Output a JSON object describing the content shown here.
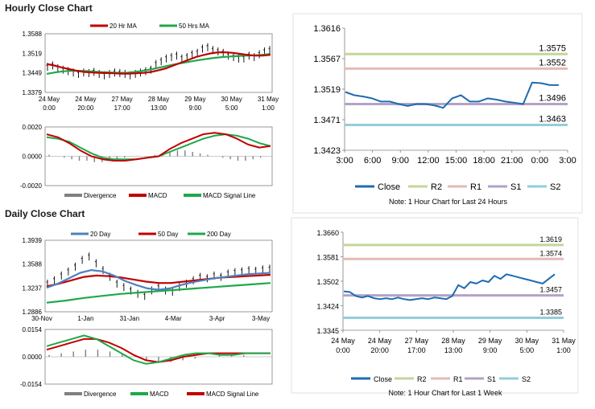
{
  "sections": {
    "hourly_title": "Hourly Close Chart",
    "daily_title": "Daily Close Chart"
  },
  "chart_data": [
    {
      "id": "hourly-price",
      "type": "line",
      "legend": [
        "20 Hr MA",
        "50 Hrs MA"
      ],
      "ytick_labels": [
        "1.3588",
        "1.3519",
        "1.3449",
        "1.3379"
      ],
      "ylim": [
        1.3379,
        1.3588
      ],
      "xtick_labels": [
        [
          "24 May",
          "0:00"
        ],
        [
          "24 May",
          "20:00"
        ],
        [
          "27 May",
          "17:00"
        ],
        [
          "28 May",
          "13:00"
        ],
        [
          "29 May",
          "9:00"
        ],
        [
          "30 May",
          "5:00"
        ],
        [
          "31 May",
          "1:00"
        ]
      ],
      "series": [
        {
          "name": "Close (bars)",
          "color": "#000000",
          "values": [
            1.347,
            1.3475,
            1.3465,
            1.346,
            1.3455,
            1.345,
            1.3445,
            1.345,
            1.3448,
            1.3452,
            1.3445,
            1.344,
            1.3445,
            1.345,
            1.3448,
            1.3445,
            1.344,
            1.3445,
            1.345,
            1.3455,
            1.346,
            1.348,
            1.349,
            1.35,
            1.3505,
            1.351,
            1.35,
            1.3505,
            1.3515,
            1.352,
            1.3535,
            1.354,
            1.353,
            1.3525,
            1.352,
            1.351,
            1.3505,
            1.35,
            1.35,
            1.351,
            1.3505,
            1.3515,
            1.3525,
            1.353
          ]
        },
        {
          "name": "20 Hr MA",
          "color": "#c00000",
          "values": [
            1.348,
            1.3475,
            1.3468,
            1.3462,
            1.3456,
            1.3452,
            1.345,
            1.3449,
            1.3448,
            1.3447,
            1.3446,
            1.3446,
            1.3447,
            1.3449,
            1.3452,
            1.3458,
            1.3465,
            1.3475,
            1.3485,
            1.3495,
            1.3505,
            1.3512,
            1.3518,
            1.3522,
            1.3522,
            1.352,
            1.3516,
            1.3512,
            1.351,
            1.351,
            1.3513
          ]
        },
        {
          "name": "50 Hrs MA",
          "color": "#1fa84a",
          "values": [
            1.3445,
            1.345,
            1.3454,
            1.3456,
            1.3456,
            1.3455,
            1.3453,
            1.3451,
            1.345,
            1.3449,
            1.3449,
            1.3452,
            1.3456,
            1.3461,
            1.3467,
            1.3473,
            1.3479,
            1.3484,
            1.3489,
            1.3494,
            1.3498,
            1.3502,
            1.3505,
            1.3507,
            1.3509,
            1.351,
            1.3511,
            1.3513,
            1.3516
          ]
        }
      ]
    },
    {
      "id": "hourly-macd",
      "type": "line",
      "legend": [
        "Divergence",
        "MACD",
        "MACD Signal Line"
      ],
      "ytick_labels": [
        "0.0020",
        "0.0000",
        "-0.0020"
      ],
      "ylim": [
        -0.002,
        0.002
      ],
      "series": [
        {
          "name": "Divergence",
          "color": "#808080",
          "values": [
            0.0001,
            0.0,
            -0.0001,
            -0.0002,
            -0.0003,
            -0.0003,
            -0.0004,
            -0.0004,
            -0.0003,
            -0.0002,
            -0.0001,
            0.0,
            0.0,
            0.0,
            0.0001,
            0.0002,
            0.0003,
            0.0004,
            0.0004,
            0.0003,
            0.0002,
            0.0001,
            0.0,
            -0.0001,
            -0.0002,
            -0.0003,
            -0.0003,
            -0.0002,
            -0.0001,
            0.0
          ]
        },
        {
          "name": "MACD",
          "color": "#c00000",
          "values": [
            0.0015,
            0.0013,
            0.0009,
            0.0004,
            0.0,
            -0.0002,
            -0.0003,
            -0.0003,
            -0.0002,
            -0.0001,
            0.0,
            0.0005,
            0.0009,
            0.0012,
            0.0015,
            0.0016,
            0.0015,
            0.0012,
            0.0008,
            0.0006,
            0.0007
          ]
        },
        {
          "name": "MACD Signal Line",
          "color": "#1fa84a",
          "values": [
            0.0013,
            0.0012,
            0.001,
            0.0006,
            0.0002,
            -0.0001,
            -0.0002,
            -0.0002,
            -0.0002,
            -0.0001,
            0.0,
            0.0003,
            0.0006,
            0.0009,
            0.0012,
            0.0014,
            0.0015,
            0.0014,
            0.0012,
            0.0009,
            0.0007
          ]
        }
      ]
    },
    {
      "id": "hourly-levels",
      "type": "line",
      "ytick_labels": [
        "1.3616",
        "1.3567",
        "1.3519",
        "1.3471",
        "1.3423"
      ],
      "ylim": [
        1.3423,
        1.3616
      ],
      "xtick_labels": [
        "3:00",
        "6:00",
        "9:00",
        "12:00",
        "15:00",
        "18:00",
        "21:00",
        "0:00",
        "3:00"
      ],
      "levels": [
        {
          "name": "R2",
          "value": 1.3575,
          "label": "1.3575",
          "color": "#c3d69b"
        },
        {
          "name": "R1",
          "value": 1.3552,
          "label": "1.3552",
          "color": "#e6b9b8"
        },
        {
          "name": "S1",
          "value": 1.3496,
          "label": "1.3496",
          "color": "#b3a2c7"
        },
        {
          "name": "S2",
          "value": 1.3463,
          "label": "1.3463",
          "color": "#93cddd"
        }
      ],
      "series": [
        {
          "name": "Close",
          "color": "#1f6bb0",
          "values": [
            1.3515,
            1.351,
            1.3508,
            1.3505,
            1.35,
            1.35,
            1.3496,
            1.3493,
            1.3496,
            1.3496,
            1.3494,
            1.349,
            1.3505,
            1.351,
            1.35,
            1.35,
            1.3505,
            1.3503,
            1.35,
            1.3498,
            1.3496,
            1.353,
            1.3529,
            1.3526,
            1.3526
          ]
        }
      ],
      "legend": [
        "Close",
        "R2",
        "R1",
        "S1",
        "S2"
      ],
      "note": "Note: 1 Hour Chart for Last 24 Hours"
    },
    {
      "id": "daily-price",
      "type": "line",
      "legend": [
        "20 Day",
        "50 Day",
        "200 Day"
      ],
      "ytick_labels": [
        "1.3939",
        "1.3588",
        "1.3237",
        "1.2886"
      ],
      "ylim": [
        1.2886,
        1.3939
      ],
      "xtick_labels": [
        "30-Nov",
        "1-Jan",
        "31-Jan",
        "4-Mar",
        "3-Apr",
        "3-May"
      ],
      "series": [
        {
          "name": "Close (bars)",
          "color": "#000000",
          "values": [
            1.33,
            1.335,
            1.342,
            1.348,
            1.355,
            1.365,
            1.37,
            1.36,
            1.35,
            1.34,
            1.33,
            1.325,
            1.32,
            1.315,
            1.312,
            1.32,
            1.325,
            1.32,
            1.318,
            1.325,
            1.33,
            1.335,
            1.34,
            1.338,
            1.342,
            1.34,
            1.345,
            1.347,
            1.348,
            1.35,
            1.349,
            1.351,
            1.352
          ]
        },
        {
          "name": "20 Day",
          "color": "#4f81bd",
          "values": [
            1.324,
            1.33,
            1.338,
            1.346,
            1.35,
            1.348,
            1.342,
            1.334,
            1.328,
            1.323,
            1.321,
            1.323,
            1.328,
            1.332,
            1.335,
            1.338,
            1.34,
            1.342,
            1.344,
            1.345,
            1.346
          ]
        },
        {
          "name": "50 Day",
          "color": "#c00000",
          "values": [
            1.326,
            1.33,
            1.335,
            1.34,
            1.342,
            1.341,
            1.339,
            1.336,
            1.333,
            1.331,
            1.331,
            1.333,
            1.335,
            1.337,
            1.339,
            1.34,
            1.341,
            1.342,
            1.343
          ]
        },
        {
          "name": "200 Day",
          "color": "#1fa84a",
          "values": [
            1.302,
            1.305,
            1.309,
            1.312,
            1.315,
            1.317,
            1.319,
            1.321,
            1.323,
            1.325,
            1.327,
            1.329,
            1.331
          ]
        }
      ]
    },
    {
      "id": "daily-macd",
      "type": "line",
      "legend": [
        "Divergence",
        "MACD",
        "MACD Signal Line"
      ],
      "ytick_labels": [
        "0.0154",
        "0.0000",
        "-0.0154"
      ],
      "ylim": [
        -0.0154,
        0.0154
      ],
      "series": [
        {
          "name": "Divergence",
          "color": "#808080",
          "values": [
            0.001,
            0.002,
            0.003,
            0.004,
            0.004,
            0.003,
            0.002,
            0.0,
            -0.002,
            -0.003,
            -0.003,
            -0.002,
            -0.001,
            0.0,
            0.001,
            0.001,
            0.001,
            0.0,
            0.0
          ]
        },
        {
          "name": "MACD",
          "color": "#1fa84a",
          "values": [
            0.006,
            0.008,
            0.01,
            0.012,
            0.01,
            0.006,
            0.002,
            -0.002,
            -0.004,
            -0.003,
            -0.001,
            0.001,
            0.002,
            0.002,
            0.001,
            0.001,
            0.002,
            0.002,
            0.002
          ]
        },
        {
          "name": "MACD Signal Line",
          "color": "#c00000",
          "values": [
            0.004,
            0.006,
            0.008,
            0.01,
            0.01,
            0.008,
            0.005,
            0.001,
            -0.002,
            -0.003,
            -0.002,
            0.0,
            0.001,
            0.002,
            0.002,
            0.002,
            0.002,
            0.002,
            0.002
          ]
        }
      ]
    },
    {
      "id": "daily-levels",
      "type": "line",
      "ytick_labels": [
        "1.3660",
        "1.3581",
        "1.3502",
        "1.3424",
        "1.3345"
      ],
      "ylim": [
        1.3345,
        1.366
      ],
      "xtick_labels": [
        [
          "24 May",
          "0:00"
        ],
        [
          "24 May",
          "20:00"
        ],
        [
          "27 May",
          "17:00"
        ],
        [
          "28 May",
          "13:00"
        ],
        [
          "29 May",
          "9:00"
        ],
        [
          "30 May",
          "5:00"
        ],
        [
          "31 May",
          "1:00"
        ]
      ],
      "levels": [
        {
          "name": "R2",
          "value": 1.3619,
          "label": "1.3619",
          "color": "#c3d69b"
        },
        {
          "name": "R1",
          "value": 1.3574,
          "label": "1.3574",
          "color": "#e6b9b8"
        },
        {
          "name": "S1",
          "value": 1.3457,
          "label": "1.3457",
          "color": "#b3a2c7"
        },
        {
          "name": "S2",
          "value": 1.3385,
          "label": "1.3385",
          "color": "#93cddd"
        }
      ],
      "series": [
        {
          "name": "Close",
          "color": "#1f6bb0",
          "values": [
            1.347,
            1.3468,
            1.3455,
            1.345,
            1.3455,
            1.3448,
            1.3445,
            1.3448,
            1.3445,
            1.345,
            1.3445,
            1.3442,
            1.3445,
            1.3448,
            1.3445,
            1.345,
            1.3448,
            1.3445,
            1.3455,
            1.349,
            1.348,
            1.35,
            1.3495,
            1.3505,
            1.35,
            1.352,
            1.351,
            1.3525,
            1.352,
            1.3515,
            1.351,
            1.3505,
            1.35,
            1.3495,
            1.351,
            1.3525
          ]
        }
      ],
      "legend": [
        "Close",
        "R2",
        "R1",
        "S1",
        "S2"
      ],
      "note": "Note: 1 Hour Chart for Last 1 Week"
    }
  ]
}
